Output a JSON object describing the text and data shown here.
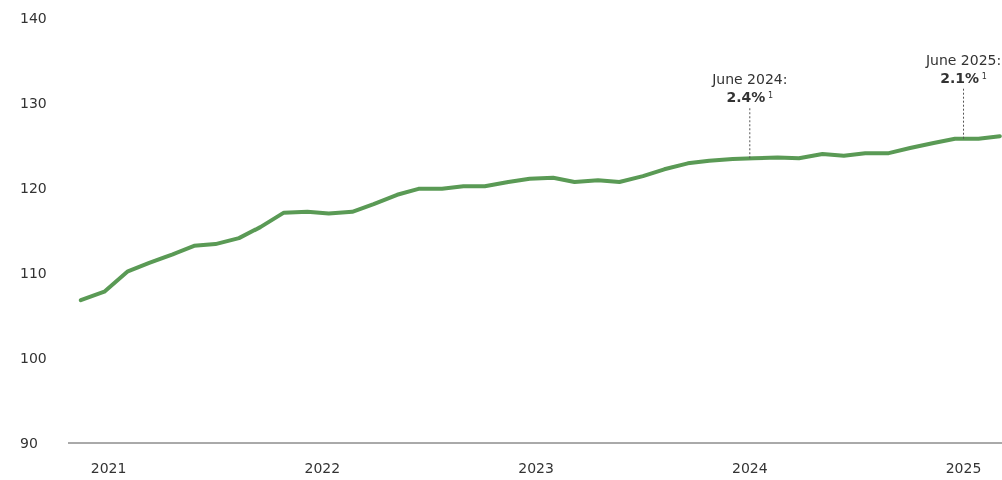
{
  "chart_data": {
    "type": "line",
    "x": [
      2020.87,
      2020.98,
      2021.09,
      2021.19,
      2021.3,
      2021.4,
      2021.5,
      2021.61,
      2021.71,
      2021.82,
      2021.93,
      2022.03,
      2022.14,
      2022.24,
      2022.35,
      2022.45,
      2022.56,
      2022.66,
      2022.76,
      2022.87,
      2022.97,
      2023.08,
      2023.18,
      2023.29,
      2023.39,
      2023.5,
      2023.6,
      2023.71,
      2023.81,
      2023.92,
      2024.02,
      2024.13,
      2024.23,
      2024.34,
      2024.44,
      2024.54,
      2024.65,
      2024.75,
      2024.86,
      2024.96,
      2025.07,
      2025.17
    ],
    "series": [
      {
        "color": "#5a9a55",
        "values": [
          106.8,
          107.8,
          110.2,
          111.2,
          112.2,
          113.2,
          113.4,
          114.1,
          115.4,
          117.1,
          117.2,
          117.0,
          117.2,
          118.1,
          119.2,
          119.9,
          119.9,
          120.2,
          120.2,
          120.7,
          121.1,
          121.2,
          120.7,
          120.9,
          120.7,
          121.4,
          122.2,
          122.9,
          123.2,
          123.4,
          123.5,
          123.6,
          123.5,
          124.0,
          123.8,
          124.1,
          124.1,
          124.7,
          125.3,
          125.8,
          125.8,
          126.1
        ]
      }
    ],
    "xlim": [
      2020.81,
      2025.18
    ],
    "xticks": [
      2021,
      2022,
      2023,
      2024,
      2025
    ],
    "ylim": [
      90,
      140
    ],
    "yticks": [
      90,
      100,
      110,
      120,
      130,
      140
    ],
    "grid": false,
    "legend": false,
    "marker": "none",
    "line_style": "solid",
    "annotations": [
      {
        "text": "June 2024:\n2.4%$^{1}$",
        "x": 2024,
        "y": 123.5
      },
      {
        "text": "June 2025:\n2.1%$^{1}$",
        "x": 2025,
        "y": 125.8
      }
    ]
  }
}
